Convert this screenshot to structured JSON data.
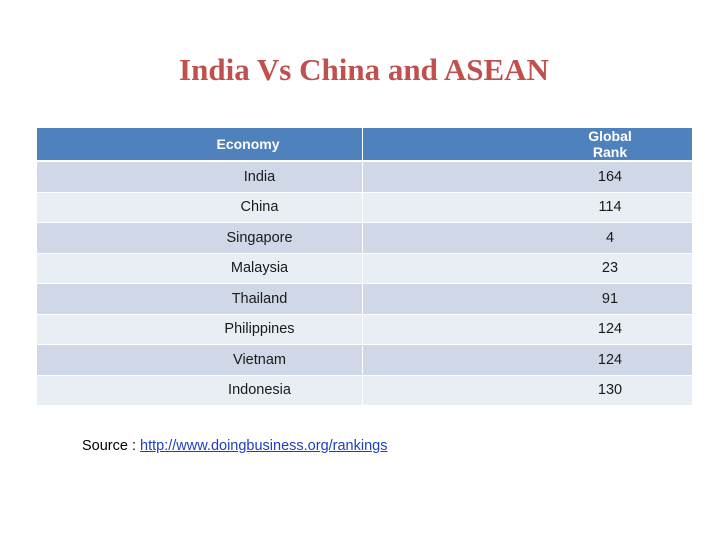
{
  "title": "India Vs China and ASEAN",
  "table": {
    "headers": {
      "economy": "Economy",
      "rank": "Global Rank"
    },
    "rows": [
      {
        "economy": "India",
        "rank": "164"
      },
      {
        "economy": "China",
        "rank": "114"
      },
      {
        "economy": "Singapore",
        "rank": "4"
      },
      {
        "economy": "Malaysia",
        "rank": "23"
      },
      {
        "economy": "Thailand",
        "rank": "91"
      },
      {
        "economy": "Philippines",
        "rank": "124"
      },
      {
        "economy": "Vietnam",
        "rank": "124"
      },
      {
        "economy": "Indonesia",
        "rank": "130"
      }
    ]
  },
  "source": {
    "prefix": "Source : ",
    "link_text": "http://www.doingbusiness.org/rankings"
  },
  "colors": {
    "title": "#c0504d",
    "header_bg": "#4f81bd",
    "row_odd": "#d0d8e8",
    "row_even": "#e9edf4",
    "link": "#1f3fbf"
  }
}
